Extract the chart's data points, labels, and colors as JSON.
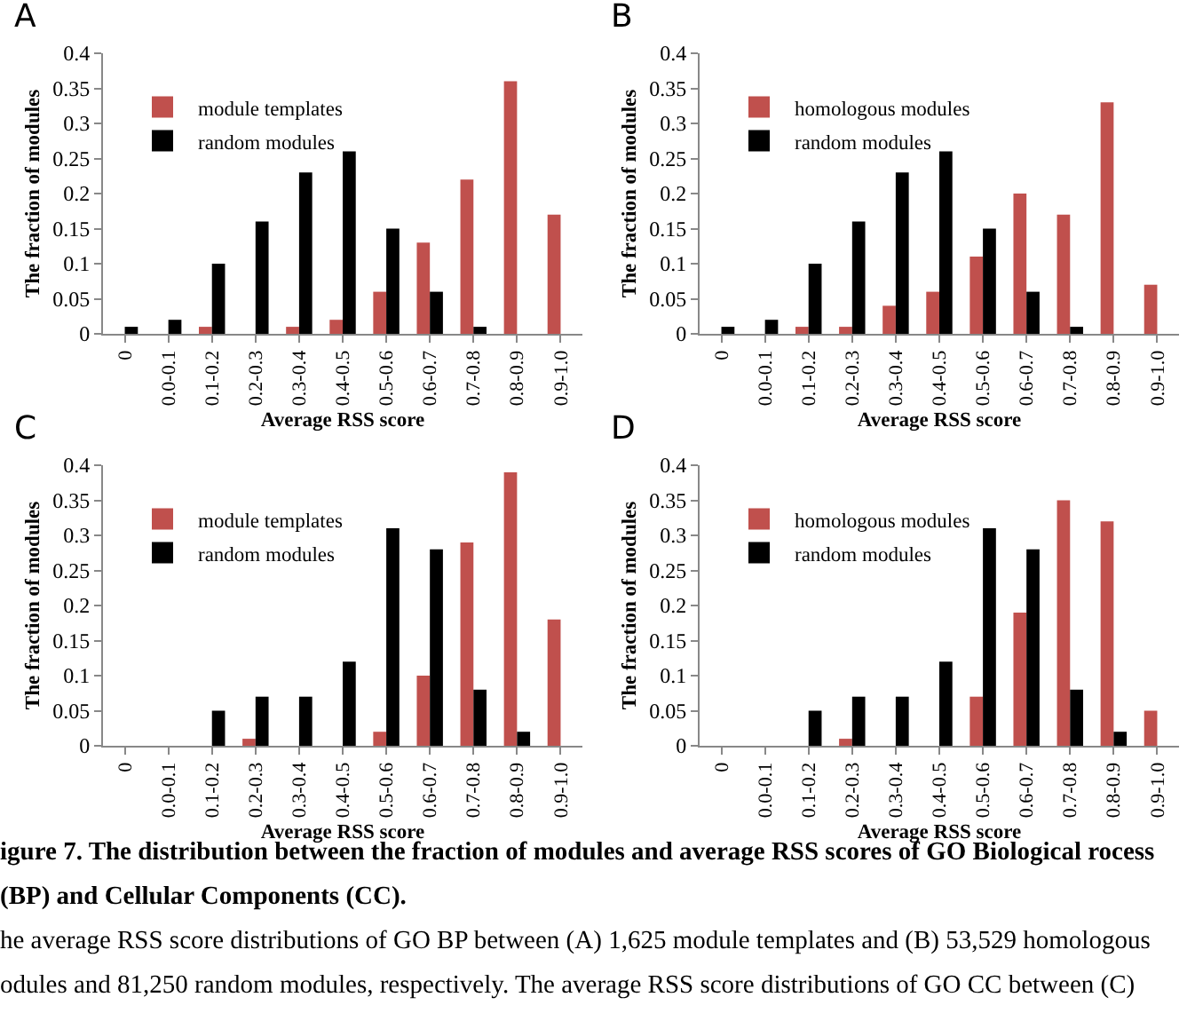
{
  "chart_data": [
    {
      "type": "bar",
      "title": "A",
      "xlabel": "Average RSS score",
      "ylabel": "The fraction of modules",
      "categories": [
        "0",
        "0.0-0.1",
        "0.1-0.2",
        "0.2-0.3",
        "0.3-0.4",
        "0.4-0.5",
        "0.5-0.6",
        "0.6-0.7",
        "0.7-0.8",
        "0.8-0.9",
        "0.9-1.0"
      ],
      "ylim": [
        0,
        0.4
      ],
      "yticks": [
        0,
        0.05,
        0.1,
        0.15,
        0.2,
        0.25,
        0.3,
        0.35,
        0.4
      ],
      "grid": false,
      "legend": "top left",
      "series": [
        {
          "name": "module templates",
          "color": "#c0504d",
          "values": [
            null,
            null,
            0.01,
            null,
            0.01,
            0.02,
            0.06,
            0.13,
            0.22,
            0.36,
            0.17
          ]
        },
        {
          "name": "random modules",
          "color": "#000000",
          "values": [
            0.01,
            0.02,
            0.1,
            0.16,
            0.23,
            0.26,
            0.15,
            0.06,
            0.01,
            null,
            null
          ]
        }
      ]
    },
    {
      "type": "bar",
      "title": "B",
      "xlabel": "Average RSS score",
      "ylabel": "The fraction of modules",
      "categories": [
        "0",
        "0.0-0.1",
        "0.1-0.2",
        "0.2-0.3",
        "0.3-0.4",
        "0.4-0.5",
        "0.5-0.6",
        "0.6-0.7",
        "0.7-0.8",
        "0.8-0.9",
        "0.9-1.0"
      ],
      "ylim": [
        0,
        0.4
      ],
      "yticks": [
        0,
        0.05,
        0.1,
        0.15,
        0.2,
        0.25,
        0.3,
        0.35,
        0.4
      ],
      "grid": false,
      "legend": "top left",
      "series": [
        {
          "name": "homologous modules",
          "color": "#c0504d",
          "values": [
            null,
            null,
            0.01,
            0.01,
            0.04,
            0.06,
            0.11,
            0.2,
            0.17,
            0.33,
            0.07
          ]
        },
        {
          "name": "random modules",
          "color": "#000000",
          "values": [
            0.01,
            0.02,
            0.1,
            0.16,
            0.23,
            0.26,
            0.15,
            0.06,
            0.01,
            null,
            null
          ]
        }
      ]
    },
    {
      "type": "bar",
      "title": "C",
      "xlabel": "Average RSS score",
      "ylabel": "The fraction of modules",
      "categories": [
        "0",
        "0.0-0.1",
        "0.1-0.2",
        "0.2-0.3",
        "0.3-0.4",
        "0.4-0.5",
        "0.5-0.6",
        "0.6-0.7",
        "0.7-0.8",
        "0.8-0.9",
        "0.9-1.0"
      ],
      "ylim": [
        0,
        0.4
      ],
      "yticks": [
        0,
        0.05,
        0.1,
        0.15,
        0.2,
        0.25,
        0.3,
        0.35,
        0.4
      ],
      "grid": false,
      "legend": "top left",
      "series": [
        {
          "name": "module templates",
          "color": "#c0504d",
          "values": [
            null,
            null,
            null,
            0.01,
            null,
            null,
            0.02,
            0.1,
            0.29,
            0.39,
            0.18
          ]
        },
        {
          "name": "random modules",
          "color": "#000000",
          "values": [
            null,
            null,
            0.05,
            0.07,
            0.07,
            0.12,
            0.31,
            0.28,
            0.08,
            0.02,
            null
          ]
        }
      ]
    },
    {
      "type": "bar",
      "title": "D",
      "xlabel": "Average RSS score",
      "ylabel": "The fraction of modules",
      "categories": [
        "0",
        "0.0-0.1",
        "0.1-0.2",
        "0.2-0.3",
        "0.3-0.4",
        "0.4-0.5",
        "0.5-0.6",
        "0.6-0.7",
        "0.7-0.8",
        "0.8-0.9",
        "0.9-1.0"
      ],
      "ylim": [
        0,
        0.4
      ],
      "yticks": [
        0,
        0.05,
        0.1,
        0.15,
        0.2,
        0.25,
        0.3,
        0.35,
        0.4
      ],
      "grid": false,
      "legend": "top left",
      "annotations": [
        "igure 7. The distribution between the fraction of modules and average RSS scores of GO Biological rocess (BP) and Cellular Components (CC).",
        "he average RSS score distributions of GO BP between (A) 1,625 module templates and (B) 53,529 homologous odules and 81,250 random modules, respectively. The average RSS score distributions of GO CC between (C)"
      ],
      "series": [
        {
          "name": "homologous modules",
          "color": "#c0504d",
          "values": [
            null,
            null,
            null,
            0.01,
            null,
            null,
            0.07,
            0.19,
            0.35,
            0.32,
            0.05
          ]
        },
        {
          "name": "random modules",
          "color": "#000000",
          "values": [
            null,
            null,
            0.05,
            0.07,
            0.07,
            0.12,
            0.31,
            0.28,
            0.08,
            0.02,
            null
          ]
        }
      ]
    }
  ]
}
